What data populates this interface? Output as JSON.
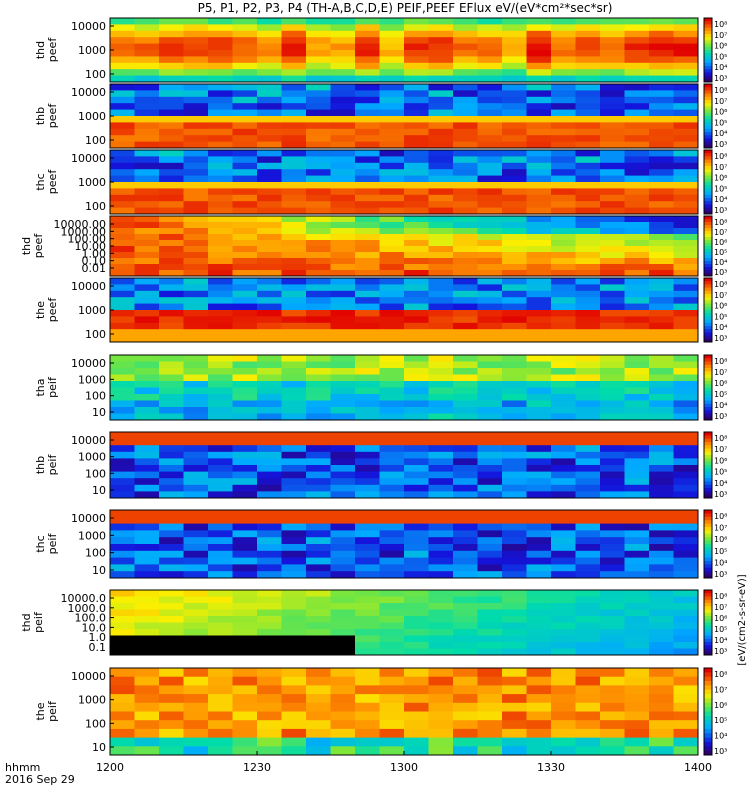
{
  "title": "P5, P1, P2, P3, P4 (TH-A,B,C,D,E) PEIF,PEEF EFlux eV/(eV*cm²*sec*sr)",
  "colorbar_label": "[eV/(cm2-s-sr-eV)]",
  "colorbar_ticks": [
    "10⁸",
    "10⁷",
    "10⁶",
    "10⁵",
    "10⁴",
    "10³"
  ],
  "x_axis": {
    "label_line1": "hhmm",
    "label_line2": "2016 Sep 29",
    "ticks": [
      "1200",
      "1230",
      "1300",
      "1330",
      "1400"
    ]
  },
  "chart_data": [
    {
      "type": "heatmap",
      "series": "thd peef",
      "ylabel_line1": "thd",
      "ylabel_line2": "peef",
      "yticks": [
        "10000",
        "1000",
        "100"
      ],
      "x_range": [
        "1200",
        "1400"
      ],
      "colormap": "rainbow",
      "data_pattern": "blend",
      "base_hue": 0.6
    },
    {
      "type": "heatmap",
      "series": "thb peef",
      "ylabel_line1": "thb",
      "ylabel_line2": "peef",
      "yticks": [
        "10000",
        "1000",
        "100"
      ],
      "x_range": [
        "1200",
        "1400"
      ],
      "colormap": "rainbow",
      "data_pattern": "bands_bottom_red",
      "base_hue": 0.15
    },
    {
      "type": "heatmap",
      "series": "thc peef",
      "ylabel_line1": "thc",
      "ylabel_line2": "peef",
      "yticks": [
        "10000",
        "1000",
        "100"
      ],
      "x_range": [
        "1200",
        "1400"
      ],
      "colormap": "rainbow",
      "data_pattern": "bands_bottom_red",
      "base_hue": 0.2
    },
    {
      "type": "heatmap",
      "series": "thd peef",
      "ylabel_line1": "thd",
      "ylabel_line2": "peef",
      "yticks": [
        "10000.00",
        "1000.00",
        "100.00",
        "10.00",
        "1.00",
        "0.10",
        "0.01"
      ],
      "x_range": [
        "1200",
        "1400"
      ],
      "colormap": "rainbow",
      "data_pattern": "warm_fade",
      "base_hue": 0.9
    },
    {
      "type": "heatmap",
      "series": "the peef",
      "ylabel_line1": "the",
      "ylabel_line2": "peef",
      "yticks": [
        "10000",
        "1000",
        "100"
      ],
      "x_range": [
        "1200",
        "1400"
      ],
      "colormap": "rainbow",
      "data_pattern": "spiky",
      "base_hue": 0.1
    },
    {
      "type": "heatmap",
      "series": "tha peif",
      "ylabel_line1": "tha",
      "ylabel_line2": "peif",
      "yticks": [
        "10000",
        "1000",
        "100",
        "10"
      ],
      "x_range": [
        "1200",
        "1400"
      ],
      "colormap": "rainbow",
      "data_pattern": "mid",
      "base_hue": 0.5
    },
    {
      "type": "heatmap",
      "series": "thb peif",
      "ylabel_line1": "thb",
      "ylabel_line2": "peif",
      "yticks": [
        "10000",
        "1000",
        "100",
        "10"
      ],
      "x_range": [
        "1200",
        "1400"
      ],
      "colormap": "rainbow",
      "data_pattern": "top_red_blue",
      "base_hue": 0.25
    },
    {
      "type": "heatmap",
      "series": "thc peif",
      "ylabel_line1": "thc",
      "ylabel_line2": "peif",
      "yticks": [
        "10000",
        "1000",
        "100",
        "10"
      ],
      "x_range": [
        "1200",
        "1400"
      ],
      "colormap": "rainbow",
      "data_pattern": "top_red_blue",
      "base_hue": 0.3
    },
    {
      "type": "heatmap",
      "series": "thd peif",
      "ylabel_line1": "thd",
      "ylabel_line2": "peif",
      "yticks": [
        "10000.0",
        "1000.0",
        "100.0",
        "10.0",
        "1.0",
        "0.1"
      ],
      "x_range": [
        "1200",
        "1400"
      ],
      "colormap": "rainbow",
      "data_pattern": "cool_black",
      "base_hue": 0.7
    },
    {
      "type": "heatmap",
      "series": "the peif",
      "ylabel_line1": "the",
      "ylabel_line2": "peif",
      "yticks": [
        "10000",
        "1000",
        "100",
        "10"
      ],
      "x_range": [
        "1200",
        "1400"
      ],
      "colormap": "rainbow",
      "data_pattern": "orange",
      "base_hue": 0.05
    }
  ]
}
